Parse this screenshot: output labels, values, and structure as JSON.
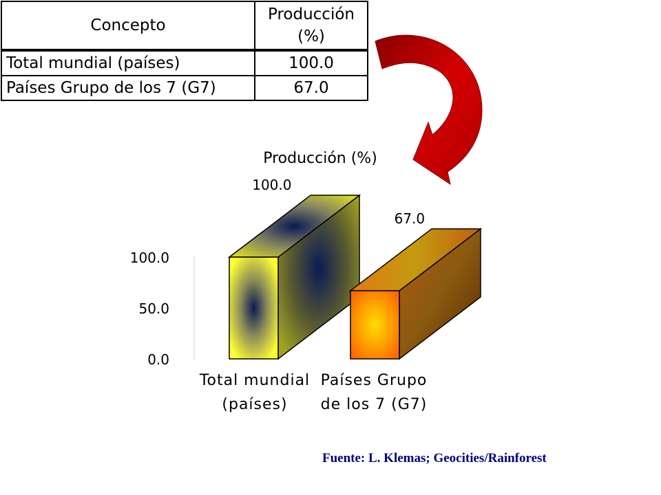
{
  "table": {
    "headers": {
      "concept": "Concepto",
      "production_line1": "Producción",
      "production_line2": "(%)"
    },
    "rows": [
      {
        "label": "Total mundial (países)",
        "value": "100.0"
      },
      {
        "label": "Países Grupo de los 7 (G7)",
        "value": "67.0"
      }
    ]
  },
  "chart_data": {
    "type": "bar",
    "title": "Producción (%)",
    "categories": [
      [
        "Total mundial",
        "(países)"
      ],
      [
        "Países Grupo",
        "de los 7 (G7)"
      ]
    ],
    "values": [
      100.0,
      67.0
    ],
    "value_labels": [
      "100.0",
      "67.0"
    ],
    "yticks": [
      "0.0",
      "50.0",
      "100.0"
    ],
    "ylim": [
      0,
      100
    ],
    "bar_3d": true,
    "colors": {
      "bar1_front": "#ffff33",
      "bar1_side": "#8a8a1e",
      "bar1_center": "#0b1a55",
      "bar2_front": "#ff7f0e",
      "bar2_side": "#7a3a06",
      "bar2_center": "#ffcc00",
      "arrow": "#cc0000"
    }
  },
  "source": "Fuente: L. Klemas; Geocities/Rainforest"
}
